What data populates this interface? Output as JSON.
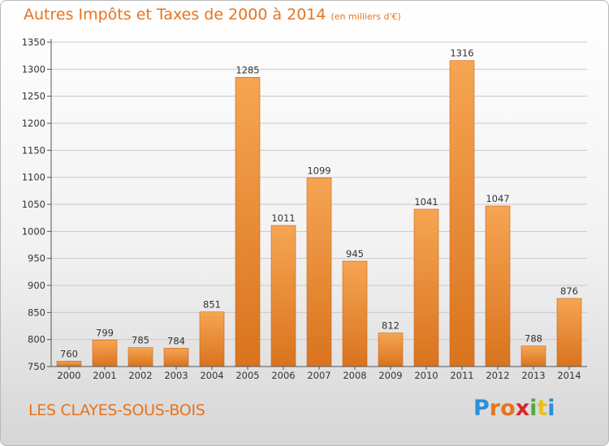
{
  "header": {
    "title": "Autres Impôts et Taxes de 2000 à 2014",
    "unit": "(en milliers d'€)"
  },
  "footer": {
    "commune": "LES CLAYES-SOUS-BOIS",
    "logo": "Proxiti"
  },
  "colors": {
    "accent": "#e8731b",
    "bar_top": "#f6a553",
    "bar_bottom": "#d9731e"
  },
  "chart_data": {
    "type": "bar",
    "title": "Autres Impôts et Taxes de 2000 à 2014",
    "subtitle": "(en milliers d'€)",
    "xlabel": "",
    "ylabel": "",
    "categories": [
      "2000",
      "2001",
      "2002",
      "2003",
      "2004",
      "2005",
      "2006",
      "2007",
      "2008",
      "2009",
      "2010",
      "2011",
      "2012",
      "2013",
      "2014"
    ],
    "values": [
      760,
      799,
      785,
      784,
      851,
      1285,
      1011,
      1099,
      945,
      812,
      1041,
      1316,
      1047,
      788,
      876
    ],
    "ylim": [
      750,
      1350
    ],
    "yticks": [
      750,
      800,
      850,
      900,
      950,
      1000,
      1050,
      1100,
      1150,
      1200,
      1250,
      1300,
      1350
    ],
    "grid": true,
    "data_labels": true
  }
}
